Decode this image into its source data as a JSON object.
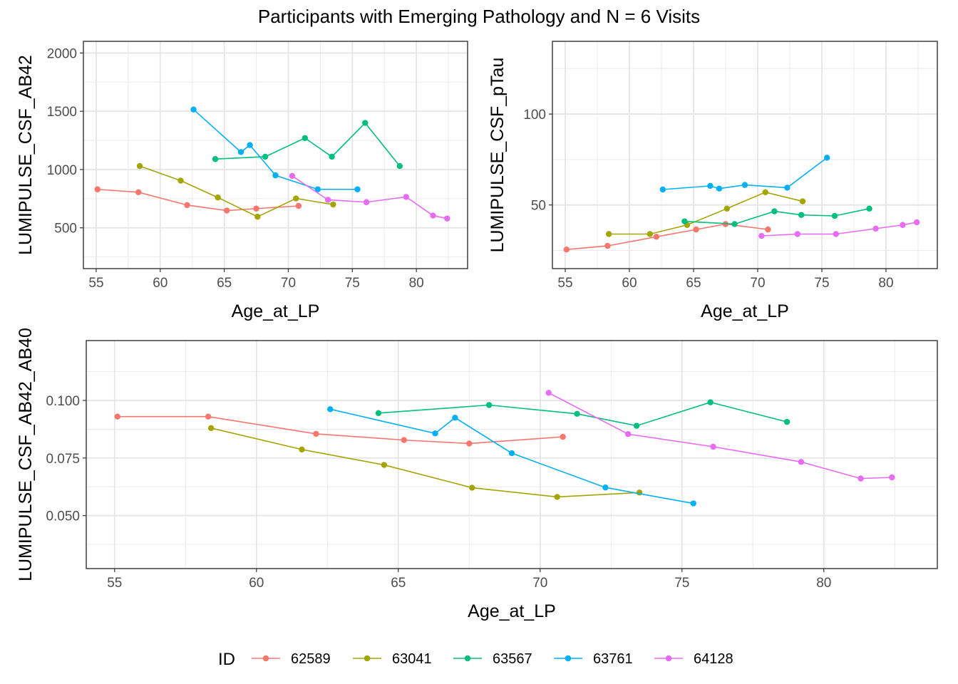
{
  "title": "Participants with Emerging Pathology and N = 6 Visits",
  "legend": {
    "title": "ID",
    "entries": [
      "62589",
      "63041",
      "63567",
      "63761",
      "64128"
    ],
    "colors": [
      "#F8766D",
      "#A3A500",
      "#00BF7D",
      "#00B0F6",
      "#E76BF3"
    ]
  },
  "chart_data": [
    {
      "type": "line",
      "xlabel": "Age_at_LP",
      "ylabel": "LUMIPULSE_CSF_AB42",
      "xlim": [
        54,
        84
      ],
      "ylim": [
        150,
        2100
      ],
      "xticks": [
        55,
        60,
        65,
        70,
        75,
        80
      ],
      "yticks": [
        500,
        1000,
        1500,
        2000
      ],
      "grid": true,
      "series": [
        {
          "name": "62589",
          "x": [
            55.1,
            58.3,
            62.1,
            65.2,
            67.5,
            70.8
          ],
          "y": [
            830,
            805,
            695,
            648,
            665,
            688
          ]
        },
        {
          "name": "63041",
          "x": [
            58.4,
            61.6,
            64.5,
            67.6,
            70.6,
            73.5
          ],
          "y": [
            1030,
            905,
            760,
            595,
            752,
            700
          ]
        },
        {
          "name": "63567",
          "x": [
            64.3,
            68.2,
            71.3,
            73.4,
            76.0,
            78.7
          ],
          "y": [
            1090,
            1110,
            1270,
            1110,
            1400,
            1030
          ]
        },
        {
          "name": "63761",
          "x": [
            62.6,
            66.3,
            67.0,
            69.0,
            72.3,
            75.4
          ],
          "y": [
            1515,
            1150,
            1210,
            950,
            830,
            830
          ]
        },
        {
          "name": "64128",
          "x": [
            70.3,
            73.1,
            76.1,
            79.2,
            81.3,
            82.4
          ],
          "y": [
            945,
            740,
            720,
            765,
            605,
            580
          ]
        }
      ]
    },
    {
      "type": "line",
      "xlabel": "Age_at_LP",
      "ylabel": "LUMIPULSE_CSF_pTau",
      "xlim": [
        54,
        84
      ],
      "ylim": [
        15,
        140
      ],
      "xticks": [
        55,
        60,
        65,
        70,
        75,
        80
      ],
      "yticks": [
        50,
        100
      ],
      "grid": true,
      "series": [
        {
          "name": "62589",
          "x": [
            55.1,
            58.3,
            62.1,
            65.2,
            67.5,
            70.8
          ],
          "y": [
            25.5,
            27.5,
            32.5,
            36.5,
            39.5,
            36.5
          ]
        },
        {
          "name": "63041",
          "x": [
            58.4,
            61.6,
            64.5,
            67.6,
            70.6,
            73.5
          ],
          "y": [
            34,
            34,
            39,
            48,
            57,
            52
          ]
        },
        {
          "name": "63567",
          "x": [
            64.3,
            68.2,
            71.3,
            73.4,
            76.0,
            78.7
          ],
          "y": [
            41,
            39.5,
            46.5,
            44.5,
            44,
            48
          ]
        },
        {
          "name": "63761",
          "x": [
            62.6,
            66.3,
            67.0,
            69.0,
            72.3,
            75.4
          ],
          "y": [
            58.5,
            60.5,
            59,
            61,
            59.5,
            76
          ]
        },
        {
          "name": "64128",
          "x": [
            70.3,
            73.1,
            76.1,
            79.2,
            81.3,
            82.4
          ],
          "y": [
            33,
            34,
            34,
            37,
            39,
            40.5
          ]
        }
      ]
    },
    {
      "type": "line",
      "xlabel": "Age_at_LP",
      "ylabel": "LUMIPULSE_CSF_AB42_AB40",
      "xlim": [
        54,
        84
      ],
      "ylim": [
        0.027,
        0.126
      ],
      "xticks": [
        55,
        60,
        65,
        70,
        75,
        80
      ],
      "yticks": [
        "0.050",
        "0.075",
        "0.100"
      ],
      "grid": true,
      "series": [
        {
          "name": "62589",
          "x": [
            55.1,
            58.3,
            62.1,
            65.2,
            67.5,
            70.8
          ],
          "y": [
            0.093,
            0.093,
            0.0855,
            0.0828,
            0.0813,
            0.0842
          ]
        },
        {
          "name": "63041",
          "x": [
            58.4,
            61.6,
            64.5,
            67.6,
            70.6,
            73.5
          ],
          "y": [
            0.088,
            0.0787,
            0.072,
            0.0621,
            0.0581,
            0.06
          ]
        },
        {
          "name": "63567",
          "x": [
            64.3,
            68.2,
            71.3,
            73.4,
            76.0,
            78.7
          ],
          "y": [
            0.0945,
            0.098,
            0.0942,
            0.089,
            0.0992,
            0.0907
          ]
        },
        {
          "name": "63761",
          "x": [
            62.6,
            66.3,
            67.0,
            69.0,
            72.3,
            75.4
          ],
          "y": [
            0.0962,
            0.0857,
            0.0925,
            0.0771,
            0.0622,
            0.0553
          ]
        },
        {
          "name": "64128",
          "x": [
            70.3,
            73.1,
            76.1,
            79.2,
            81.3,
            82.4
          ],
          "y": [
            0.1033,
            0.0854,
            0.0799,
            0.0733,
            0.0661,
            0.0666
          ]
        }
      ]
    }
  ]
}
